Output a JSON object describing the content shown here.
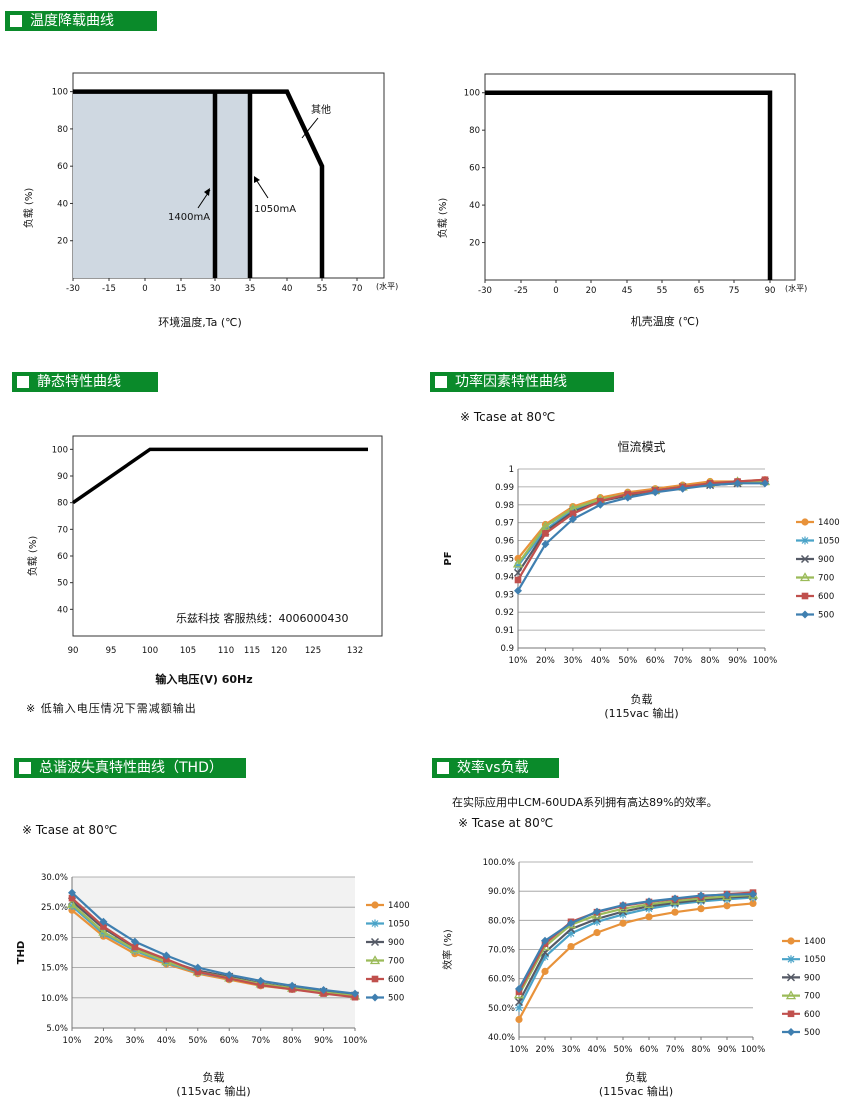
{
  "headers": {
    "derating": "温度降载曲线",
    "static": "静态特性曲线",
    "pf": "功率因素特性曲线",
    "thd": "总谐波失真特性曲线（THD）",
    "eff": "效率vs负载"
  },
  "notes": {
    "pf_tcase": "※ Tcase at 80℃",
    "static_note": "※ 低输入电压情况下需减额输出",
    "thd_tcase": "※ Tcase at 80℃",
    "eff_desc": "在实际应用中LCM-60UDA系列拥有高达89%的效率。",
    "eff_tcase": "※ Tcase at 80℃"
  },
  "colors": {
    "header_bg": "#0a8a2a",
    "fill_area": "#cfd8e1",
    "s1400": "#e8923a",
    "s1050": "#4aa3c8",
    "s900": "#555a66",
    "s700": "#9bbb59",
    "s600": "#c0504d",
    "s500": "#3f7fb0",
    "plot_bg_gray": "#f2f2f2"
  },
  "chart_data": [
    {
      "id": "derating_ambient",
      "type": "line",
      "xlabel": "环境温度,Ta (℃)",
      "ylabel": "负载 (%)",
      "x_unit": "(水平)",
      "xticks": [
        "-30",
        "-15",
        "0",
        "15",
        "30",
        "35",
        "40",
        "55",
        "70"
      ],
      "yticks": [
        "20",
        "40",
        "60",
        "80",
        "100"
      ],
      "xlim": [
        -30,
        80
      ],
      "ylim": [
        0,
        110
      ],
      "series": [
        {
          "name": "其他",
          "x": [
            -30,
            40,
            55,
            55
          ],
          "y": [
            100,
            100,
            60,
            0
          ]
        },
        {
          "name": "1400mA",
          "x": [
            30,
            30
          ],
          "y": [
            100,
            0
          ]
        },
        {
          "name": "1050mA",
          "x": [
            35,
            35
          ],
          "y": [
            100,
            0
          ]
        }
      ],
      "annotations": [
        "其他",
        "1400mA",
        "1050mA"
      ]
    },
    {
      "id": "derating_case",
      "type": "line",
      "xlabel": "机壳温度 (℃)",
      "ylabel": "负载 (%)",
      "x_unit": "(水平)",
      "xticks": [
        "-30",
        "-25",
        "0",
        "20",
        "45",
        "55",
        "65",
        "75",
        "90"
      ],
      "yticks": [
        "20",
        "40",
        "60",
        "80",
        "100"
      ],
      "ylim": [
        0,
        110
      ],
      "series": [
        {
          "x": [
            -30,
            90,
            90
          ],
          "y": [
            100,
            100,
            0
          ]
        }
      ]
    },
    {
      "id": "static",
      "type": "line",
      "xlabel": "输入电压(V) 60Hz",
      "ylabel": "负载 (%)",
      "xticks": [
        "90",
        "95",
        "100",
        "105",
        "110",
        "115",
        "120",
        "125",
        "132"
      ],
      "yticks": [
        "40",
        "50",
        "60",
        "70",
        "80",
        "90",
        "100"
      ],
      "xlim": [
        90,
        135
      ],
      "ylim": [
        30,
        105
      ],
      "series": [
        {
          "x": [
            90,
            100,
            132
          ],
          "y": [
            80,
            100,
            100
          ]
        }
      ],
      "annotations": [
        "乐兹科技 客服热线：4006000430"
      ]
    },
    {
      "id": "pf",
      "type": "line",
      "title": "恒流模式",
      "xlabel": "负载",
      "xlabel2": "(115vac 输出)",
      "ylabel": "PF",
      "categories": [
        "10%",
        "20%",
        "30%",
        "40%",
        "50%",
        "60%",
        "70%",
        "80%",
        "90%",
        "100%"
      ],
      "yticks": [
        "0.9",
        "0.91",
        "0.92",
        "0.93",
        "0.94",
        "0.95",
        "0.96",
        "0.97",
        "0.98",
        "0.99",
        "1"
      ],
      "ylim": [
        0.9,
        1.0
      ],
      "series": [
        {
          "name": "1400",
          "values": [
            0.95,
            0.969,
            0.979,
            0.984,
            0.987,
            0.989,
            0.991,
            0.993,
            0.993,
            0.994
          ]
        },
        {
          "name": "1050",
          "values": [
            0.946,
            0.966,
            0.977,
            0.982,
            0.986,
            0.988,
            0.99,
            0.991,
            0.992,
            0.993
          ]
        },
        {
          "name": "900",
          "values": [
            0.942,
            0.965,
            0.976,
            0.982,
            0.985,
            0.988,
            0.99,
            0.991,
            0.992,
            0.993
          ]
        },
        {
          "name": "700",
          "values": [
            0.947,
            0.968,
            0.978,
            0.983,
            0.986,
            0.988,
            0.99,
            0.992,
            0.993,
            0.993
          ]
        },
        {
          "name": "600",
          "values": [
            0.938,
            0.964,
            0.975,
            0.982,
            0.986,
            0.988,
            0.99,
            0.992,
            0.993,
            0.994
          ]
        },
        {
          "name": "500",
          "values": [
            0.932,
            0.958,
            0.972,
            0.98,
            0.984,
            0.987,
            0.989,
            0.991,
            0.992,
            0.992
          ]
        }
      ]
    },
    {
      "id": "thd",
      "type": "line",
      "xlabel": "负载",
      "xlabel2": "(115vac 输出)",
      "ylabel": "THD",
      "categories": [
        "10%",
        "20%",
        "30%",
        "40%",
        "50%",
        "60%",
        "70%",
        "80%",
        "90%",
        "100%"
      ],
      "yticks": [
        "5.0%",
        "10.0%",
        "15.0%",
        "20.0%",
        "25.0%",
        "30.0%"
      ],
      "ylim": [
        5,
        30
      ],
      "series": [
        {
          "name": "1400",
          "values": [
            24.5,
            20.2,
            17.3,
            15.6,
            14.0,
            13.0,
            12.0,
            11.4,
            10.8,
            10.2
          ]
        },
        {
          "name": "1050",
          "values": [
            25.2,
            20.6,
            17.8,
            15.8,
            14.2,
            13.2,
            12.2,
            11.5,
            10.9,
            10.3
          ]
        },
        {
          "name": "900",
          "values": [
            26.0,
            21.5,
            18.3,
            16.2,
            14.5,
            13.5,
            12.4,
            11.7,
            11.0,
            10.4
          ]
        },
        {
          "name": "700",
          "values": [
            25.5,
            20.9,
            18.0,
            16.0,
            14.3,
            13.3,
            12.3,
            11.6,
            10.9,
            10.3
          ]
        },
        {
          "name": "600",
          "values": [
            26.5,
            21.8,
            18.4,
            16.4,
            14.3,
            13.2,
            12.1,
            11.4,
            10.7,
            10.1
          ]
        },
        {
          "name": "500",
          "values": [
            27.4,
            22.6,
            19.3,
            17.0,
            15.0,
            13.8,
            12.8,
            12.0,
            11.3,
            10.7
          ]
        }
      ]
    },
    {
      "id": "eff",
      "type": "line",
      "xlabel": "负载",
      "xlabel2": "(115vac 输出)",
      "ylabel": "效率 (%)",
      "categories": [
        "10%",
        "20%",
        "30%",
        "40%",
        "50%",
        "60%",
        "70%",
        "80%",
        "90%",
        "100%"
      ],
      "yticks": [
        "40.0%",
        "50.0%",
        "60.0%",
        "70.0%",
        "80.0%",
        "90.0%",
        "100.0%"
      ],
      "ylim": [
        40,
        100
      ],
      "series": [
        {
          "name": "1400",
          "values": [
            46.0,
            62.5,
            71.0,
            75.8,
            79.0,
            81.2,
            82.8,
            84.0,
            85.0,
            85.8
          ]
        },
        {
          "name": "1050",
          "values": [
            50.0,
            67.5,
            75.5,
            79.5,
            82.0,
            84.0,
            85.5,
            86.5,
            87.2,
            87.8
          ]
        },
        {
          "name": "900",
          "values": [
            52.0,
            69.0,
            77.0,
            80.5,
            83.0,
            84.8,
            86.0,
            87.0,
            87.8,
            88.3
          ]
        },
        {
          "name": "700",
          "values": [
            54.5,
            71.0,
            78.5,
            81.8,
            84.0,
            85.5,
            86.6,
            87.5,
            88.2,
            88.7
          ]
        },
        {
          "name": "600",
          "values": [
            55.5,
            72.0,
            79.5,
            82.8,
            85.0,
            86.3,
            87.3,
            88.2,
            89.0,
            89.5
          ]
        },
        {
          "name": "500",
          "values": [
            56.5,
            73.0,
            79.0,
            83.0,
            85.2,
            86.5,
            87.5,
            88.5,
            88.8,
            89.0
          ]
        }
      ]
    }
  ]
}
